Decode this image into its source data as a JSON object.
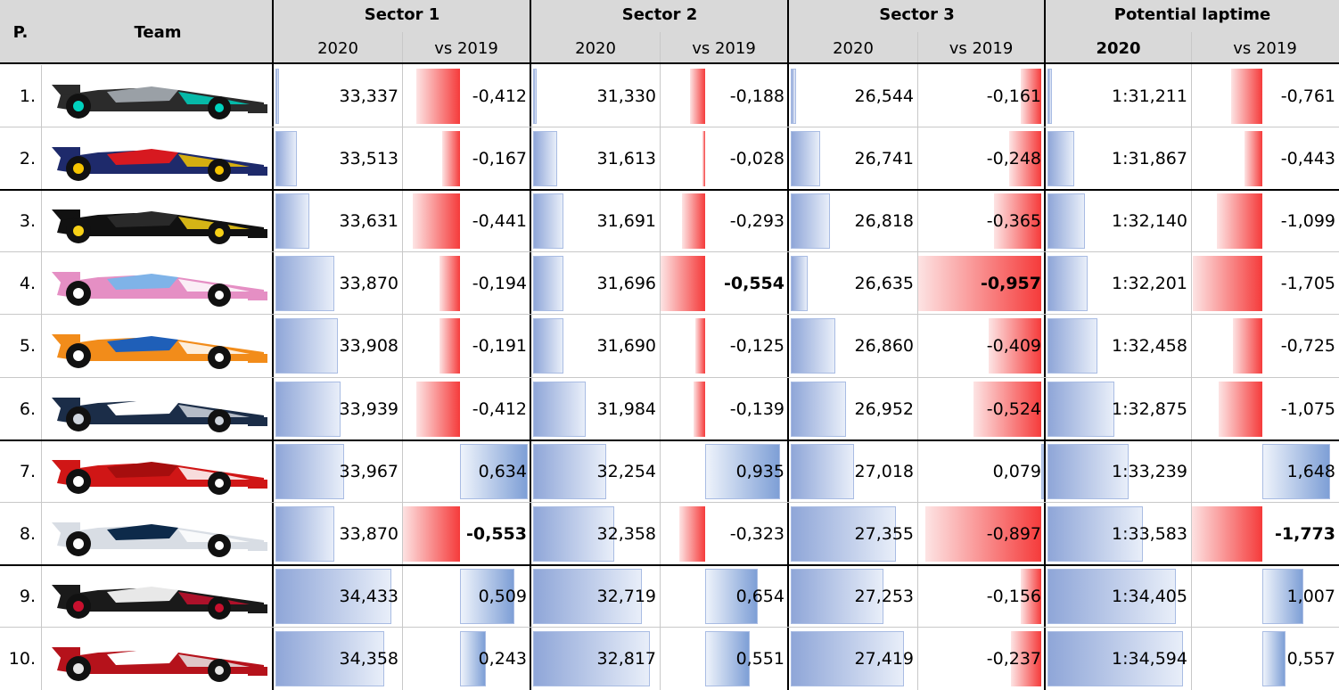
{
  "headers": {
    "position": "P.",
    "team": "Team",
    "sector1": "Sector 1",
    "sector2": "Sector 2",
    "sector3": "Sector 3",
    "potential": "Potential laptime",
    "year": "2020",
    "vs": "vs 2019"
  },
  "colors": {
    "time_bar": "#8fa6d8",
    "slower_bar": "#f53b3b",
    "car_mercedes": "#2b2b2b",
    "car_redbull": "#1e2a6b",
    "car_renault": "#111111",
    "car_racingpoint": "#e58fc4",
    "car_mclaren": "#f28c1a",
    "car_alphatauri": "#1b2d48",
    "car_ferrari": "#d01616",
    "car_williams": "#d8dde4",
    "car_haas": "#1a1a1a",
    "car_alfaromeo": "#b5121b"
  },
  "chart_data": {
    "type": "table",
    "columns": [
      "P.",
      "Team",
      "Sector 1 2020",
      "Sector 1 vs 2019",
      "Sector 2 2020",
      "Sector 2 vs 2019",
      "Sector 3 2020",
      "Sector 3 vs 2019",
      "Potential laptime 2020",
      "Potential laptime vs 2019"
    ],
    "rows": [
      {
        "pos": "1.",
        "car": "car_mercedes",
        "s1": "33,337",
        "s1v": "-0,412",
        "s2": "31,330",
        "s2v": "-0,188",
        "s3": "26,544",
        "s3v": "-0,161",
        "pl": "1:31,211",
        "plv": "-0,761"
      },
      {
        "pos": "2.",
        "car": "car_redbull",
        "s1": "33,513",
        "s1v": "-0,167",
        "s2": "31,613",
        "s2v": "-0,028",
        "s3": "26,741",
        "s3v": "-0,248",
        "pl": "1:31,867",
        "plv": "-0,443"
      },
      {
        "pos": "3.",
        "car": "car_renault",
        "s1": "33,631",
        "s1v": "-0,441",
        "s2": "31,691",
        "s2v": "-0,293",
        "s3": "26,818",
        "s3v": "-0,365",
        "pl": "1:32,140",
        "plv": "-1,099"
      },
      {
        "pos": "4.",
        "car": "car_racingpoint",
        "s1": "33,870",
        "s1v": "-0,194",
        "s2": "31,696",
        "s2v": "-0,554",
        "s3": "26,635",
        "s3v": "-0,957",
        "pl": "1:32,201",
        "plv": "-1,705"
      },
      {
        "pos": "5.",
        "car": "car_mclaren",
        "s1": "33,908",
        "s1v": "-0,191",
        "s2": "31,690",
        "s2v": "-0,125",
        "s3": "26,860",
        "s3v": "-0,409",
        "pl": "1:32,458",
        "plv": "-0,725"
      },
      {
        "pos": "6.",
        "car": "car_alphatauri",
        "s1": "33,939",
        "s1v": "-0,412",
        "s2": "31,984",
        "s2v": "-0,139",
        "s3": "26,952",
        "s3v": "-0,524",
        "pl": "1:32,875",
        "plv": "-1,075"
      },
      {
        "pos": "7.",
        "car": "car_ferrari",
        "s1": "33,967",
        "s1v": "0,634",
        "s2": "32,254",
        "s2v": "0,935",
        "s3": "27,018",
        "s3v": "0,079",
        "pl": "1:33,239",
        "plv": "1,648"
      },
      {
        "pos": "8.",
        "car": "car_williams",
        "s1": "33,870",
        "s1v": "-0,553",
        "s2": "32,358",
        "s2v": "-0,323",
        "s3": "27,355",
        "s3v": "-0,897",
        "pl": "1:33,583",
        "plv": "-1,773"
      },
      {
        "pos": "9.",
        "car": "car_haas",
        "s1": "34,433",
        "s1v": "0,509",
        "s2": "32,719",
        "s2v": "0,654",
        "s3": "27,253",
        "s3v": "-0,156",
        "pl": "1:34,405",
        "plv": "1,007"
      },
      {
        "pos": "10.",
        "car": "car_alfaromeo",
        "s1": "34,358",
        "s1v": "0,243",
        "s2": "32,817",
        "s2v": "0,551",
        "s3": "27,419",
        "s3v": "-0,237",
        "pl": "1:34,594",
        "plv": "0,557"
      }
    ],
    "bold_cells": [
      [
        3,
        "s2v"
      ],
      [
        3,
        "s3v"
      ],
      [
        7,
        "s1v"
      ],
      [
        7,
        "plv"
      ]
    ]
  }
}
